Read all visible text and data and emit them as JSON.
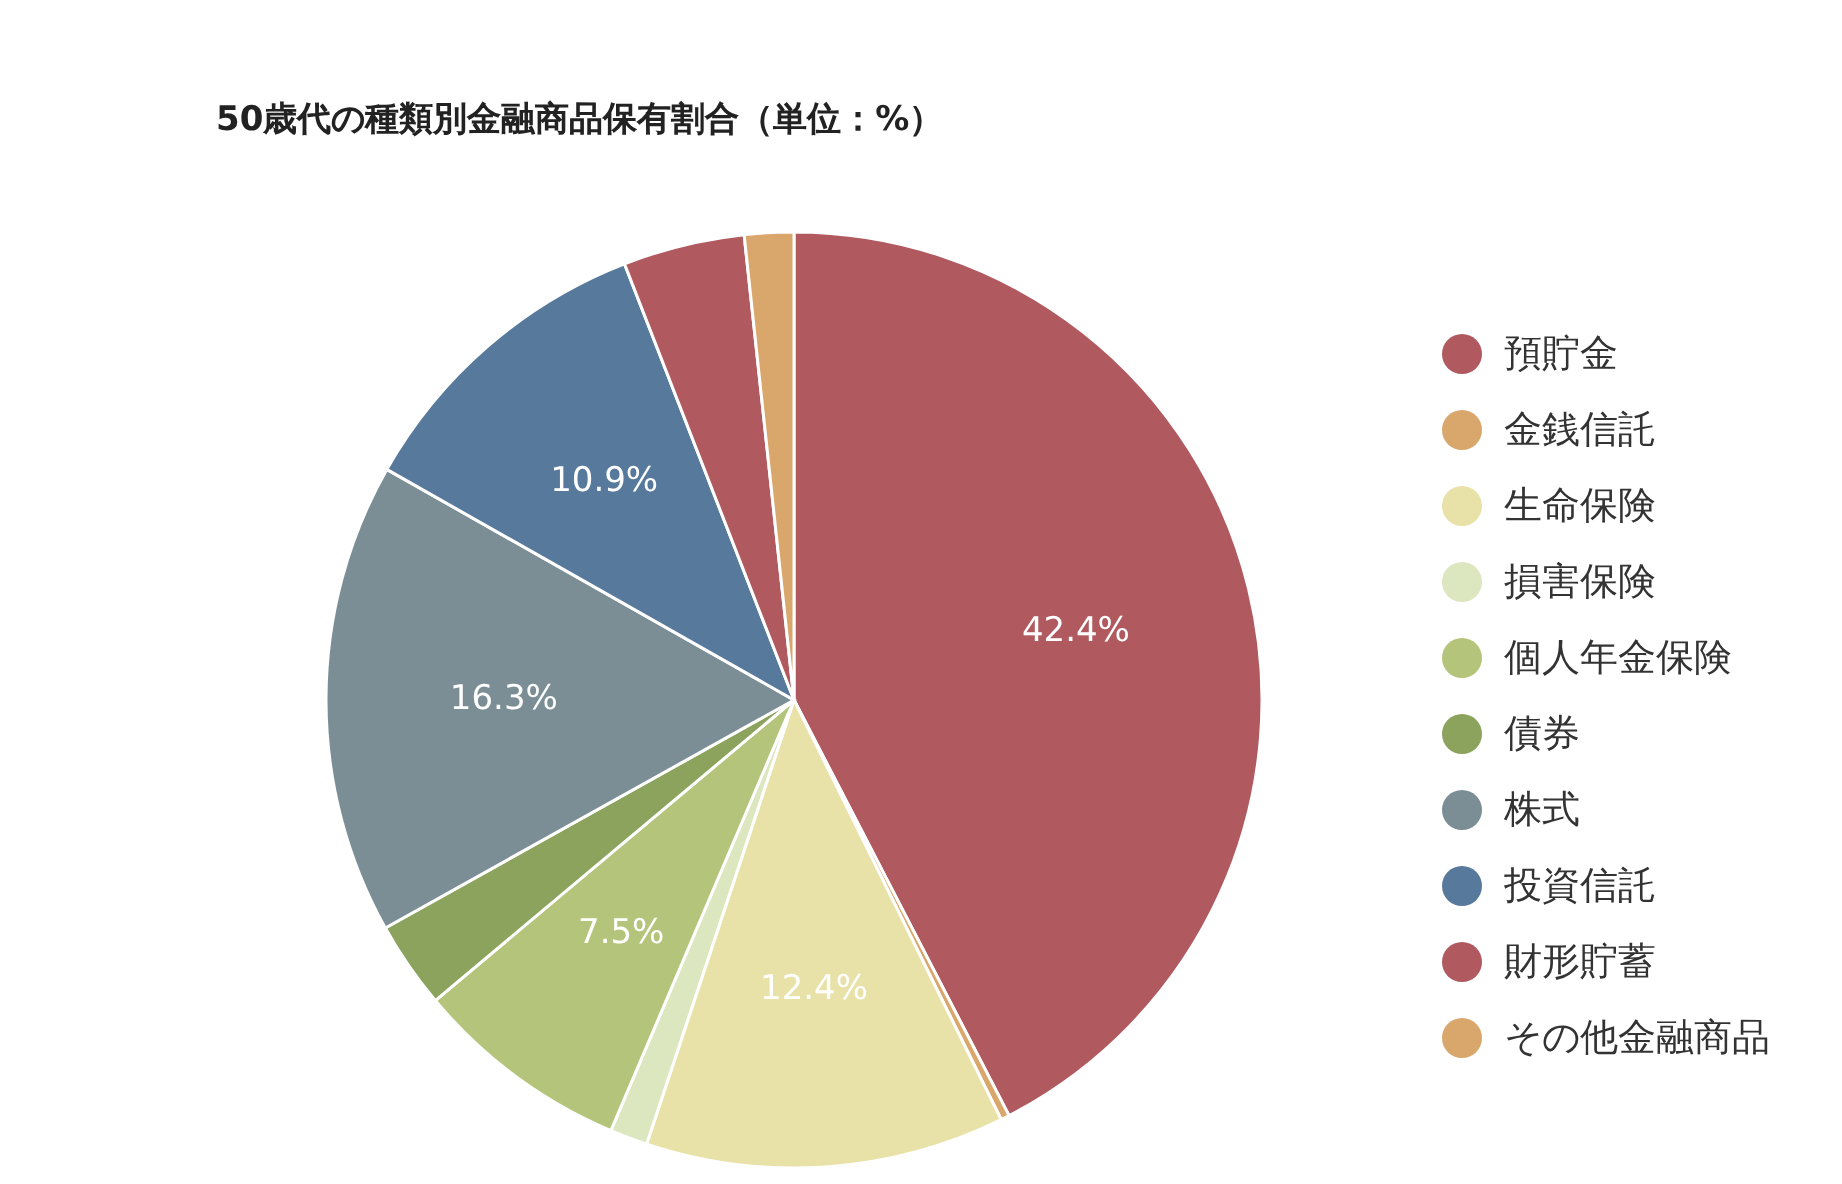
{
  "chart_data": {
    "type": "pie",
    "title": "50歳代の種類別金融商品保有割合（単位：%）",
    "categories": [
      "預貯金",
      "金銭信託",
      "生命保険",
      "損害保険",
      "個人年金保険",
      "債券",
      "株式",
      "投資信託",
      "財形貯蓄",
      "その他金融商品"
    ],
    "values": [
      42.4,
      0.3,
      12.4,
      1.3,
      7.5,
      3.0,
      16.3,
      10.9,
      4.2,
      1.7
    ],
    "value_labels": [
      "42.4%",
      null,
      "12.4%",
      null,
      "7.5%",
      null,
      "16.3%",
      "10.9%",
      null,
      null
    ],
    "colors": [
      "#b05a60",
      "#d9a66b",
      "#e8e2a8",
      "#dce6bf",
      "#b4c47a",
      "#8ba35c",
      "#7b8e95",
      "#57799b",
      "#b05a60",
      "#d9a66b"
    ],
    "legend": "right"
  }
}
